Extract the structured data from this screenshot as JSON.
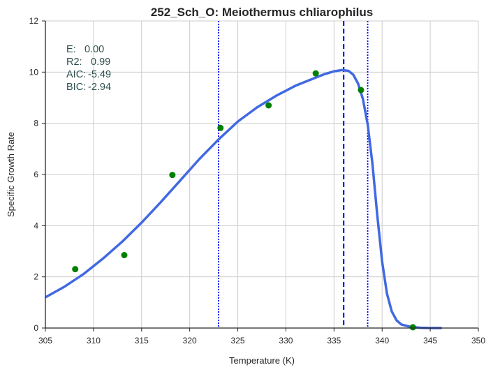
{
  "chart_data": {
    "type": "scatter",
    "title": "252_Sch_O: Meiothermus chliarophilus",
    "xlabel": "Temperature (K)",
    "ylabel": "Specific Growth Rate",
    "xlim": [
      305,
      350
    ],
    "ylim": [
      0,
      12
    ],
    "xticks": [
      305,
      310,
      315,
      320,
      325,
      330,
      335,
      340,
      345,
      350
    ],
    "yticks": [
      0,
      2,
      4,
      6,
      8,
      10,
      12
    ],
    "grid": true,
    "series": [
      {
        "kind": "points",
        "color": "#008000",
        "x": [
          308.1,
          313.2,
          318.2,
          323.2,
          328.2,
          333.1,
          337.8,
          343.2
        ],
        "y": [
          2.3,
          2.85,
          5.98,
          7.82,
          8.7,
          9.95,
          9.3,
          0.03
        ]
      },
      {
        "kind": "fit-curve",
        "color": "#4169e1",
        "x": [
          305,
          307,
          309,
          311,
          313,
          315,
          317,
          319,
          321,
          323,
          325,
          327,
          329,
          331,
          333,
          334,
          335,
          335.8,
          336.5,
          337,
          337.5,
          338,
          338.5,
          339,
          339.5,
          340,
          340.5,
          341,
          341.5,
          342,
          343,
          344,
          345,
          346.2
        ],
        "y": [
          1.2,
          1.62,
          2.12,
          2.72,
          3.38,
          4.12,
          4.92,
          5.76,
          6.6,
          7.37,
          8.07,
          8.62,
          9.08,
          9.47,
          9.77,
          9.92,
          10.03,
          10.08,
          10.05,
          9.9,
          9.55,
          8.95,
          7.95,
          6.4,
          4.4,
          2.6,
          1.35,
          0.65,
          0.3,
          0.14,
          0.04,
          0.01,
          0.0,
          0.0
        ]
      }
    ],
    "vlines": [
      {
        "x": 323.0,
        "style": "dotted",
        "color": "#0000ff"
      },
      {
        "x": 336.0,
        "style": "dashed",
        "color": "#0000ff"
      },
      {
        "x": 338.5,
        "style": "dotted",
        "color": "#0000ff"
      }
    ],
    "annotations": [
      {
        "label": "E:",
        "value": "0.00"
      },
      {
        "label": "R2:",
        "value": "0.99"
      },
      {
        "label": "AIC:",
        "value": "-5.49"
      },
      {
        "label": "BIC:",
        "value": "-2.94"
      }
    ]
  }
}
